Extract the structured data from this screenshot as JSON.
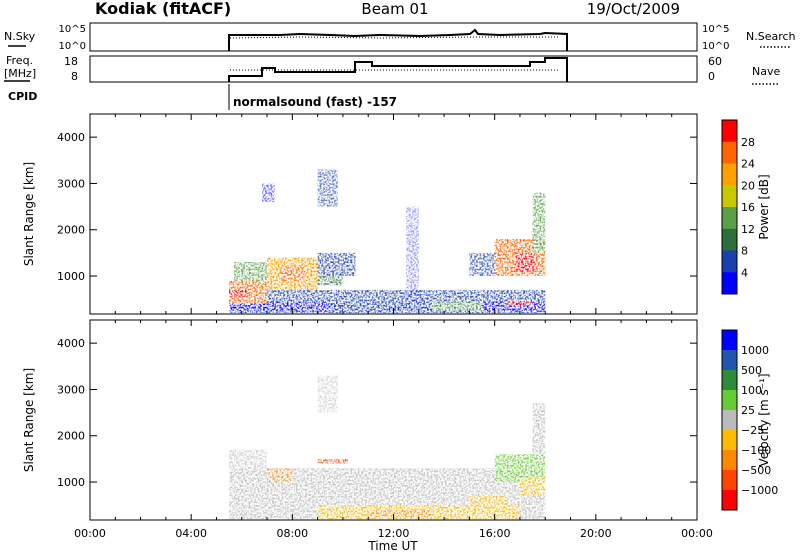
{
  "header": {
    "station": "Kodiak (fitACF)",
    "beam": "Beam 01",
    "date": "19/Oct/2009"
  },
  "summary_panels": {
    "nsky": {
      "label": "N.Sky",
      "ticks": [
        "10^5",
        "10^0"
      ]
    },
    "nsearch": {
      "label": "N.Search",
      "ticks": [
        "10^5",
        "10^0"
      ]
    },
    "freq": {
      "label_line1": "Freq.",
      "label_line2": "[MHz]",
      "ticks": [
        "18",
        "8"
      ]
    },
    "nave": {
      "label": "Nave",
      "ticks": [
        "60",
        "0"
      ]
    },
    "cpid": {
      "label": "CPID",
      "text": "normalsound (fast) -157"
    }
  },
  "colors": {
    "power_scale": [
      "#0000ff",
      "#1a3fae",
      "#2e6e3a",
      "#5aa04a",
      "#c8c800",
      "#ffa000",
      "#ff6600",
      "#ff0000"
    ],
    "velocity_scale": [
      "#ff0000",
      "#ff4400",
      "#ff8800",
      "#ffbb00",
      "#bbbbbb",
      "#66cc33",
      "#2e8b3a",
      "#1e56b0",
      "#0000ff"
    ]
  },
  "chart_data": [
    {
      "type": "heatmap",
      "title": "",
      "xlabel": "Time UT",
      "ylabel": "Slant Range [km]",
      "xlim": [
        "00:00",
        "24:00"
      ],
      "ylim": [
        180,
        4500
      ],
      "x_ticks": [
        "00:00",
        "04:00",
        "08:00",
        "12:00",
        "16:00",
        "20:00",
        "00:00"
      ],
      "y_ticks": [
        "1000",
        "2000",
        "3000",
        "4000"
      ],
      "colorbar": {
        "label": "Power [dB]",
        "range": [
          0,
          30
        ],
        "ticks": [
          "4",
          "8",
          "12",
          "16",
          "20",
          "24",
          "28"
        ]
      },
      "data_interval_ut": [
        "05:30",
        "18:00"
      ],
      "regions": [
        {
          "t": [
            5.5,
            18.0
          ],
          "r": [
            200,
            700
          ],
          "level": "4-20 dB"
        },
        {
          "t": [
            5.5,
            7.0
          ],
          "r": [
            400,
            900
          ],
          "level": "20-28 dB"
        },
        {
          "t": [
            7.0,
            9.0
          ],
          "r": [
            700,
            1400
          ],
          "level": "16-28 dB"
        },
        {
          "t": [
            9.0,
            10.5
          ],
          "r": [
            1000,
            1500
          ],
          "level": "4-12 dB"
        },
        {
          "t": [
            9.0,
            9.8
          ],
          "r": [
            2500,
            3300
          ],
          "level": "4-8 dB"
        },
        {
          "t": [
            15.0,
            18.0
          ],
          "r": [
            900,
            1800
          ],
          "level": "12-28 dB"
        },
        {
          "t": [
            17.5,
            18.0
          ],
          "r": [
            1500,
            2800
          ],
          "level": "12-24 dB"
        }
      ]
    },
    {
      "type": "heatmap",
      "title": "",
      "xlabel": "Time UT",
      "ylabel": "Slant Range [km]",
      "xlim": [
        "00:00",
        "24:00"
      ],
      "ylim": [
        180,
        4500
      ],
      "x_ticks": [
        "00:00",
        "04:00",
        "08:00",
        "12:00",
        "16:00",
        "20:00",
        "00:00"
      ],
      "y_ticks": [
        "1000",
        "2000",
        "3000",
        "4000"
      ],
      "colorbar": {
        "label": "Velocity [m s⁻¹]",
        "range": [
          -1250,
          1250
        ],
        "ticks": [
          "1000",
          "500",
          "100",
          "25",
          "−25",
          "−100",
          "−500",
          "−1000"
        ]
      },
      "data_interval_ut": [
        "05:30",
        "18:00"
      ],
      "regions": [
        {
          "t": [
            5.5,
            18.0
          ],
          "r": [
            200,
            1300
          ],
          "level": "-25 to 25 m/s"
        },
        {
          "t": [
            9.0,
            17.0
          ],
          "r": [
            200,
            500
          ],
          "level": "-100 to -25 m/s"
        },
        {
          "t": [
            16.0,
            18.0
          ],
          "r": [
            1000,
            1600
          ],
          "level": "25 to 100 m/s"
        },
        {
          "t": [
            9.0,
            10.2
          ],
          "r": [
            1400,
            1500
          ],
          "level": "-100 to -500 m/s"
        }
      ]
    }
  ]
}
